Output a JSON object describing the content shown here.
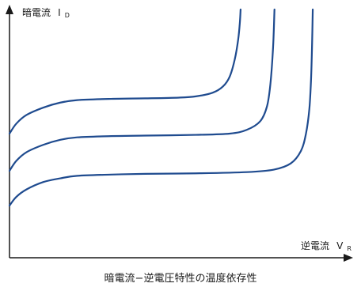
{
  "chart_data": {
    "type": "line",
    "title": "暗電流−逆電圧特性の温度依存性",
    "ylabel": {
      "main": "暗電流",
      "symbol": "I",
      "subscript": "D"
    },
    "xlabel": {
      "main": "逆電流",
      "symbol": "V",
      "subscript": "R"
    },
    "xlim": [
      0,
      100
    ],
    "ylim": [
      0,
      100
    ],
    "grid": false,
    "colors": {
      "axis": "#1a1a1a",
      "curve": "#1f4b8f"
    },
    "series": [
      {
        "points": [
          [
            0,
            50
          ],
          [
            2,
            54
          ],
          [
            5,
            57.5
          ],
          [
            10,
            60.5
          ],
          [
            15,
            62.5
          ],
          [
            20,
            63.5
          ],
          [
            30,
            64
          ],
          [
            40,
            64.2
          ],
          [
            50,
            64.5
          ],
          [
            55,
            65
          ],
          [
            60,
            66.5
          ],
          [
            63,
            69
          ],
          [
            65,
            73
          ],
          [
            66.5,
            80
          ],
          [
            67.5,
            88
          ],
          [
            68,
            95
          ],
          [
            68.2,
            100
          ]
        ]
      },
      {
        "points": [
          [
            0,
            35
          ],
          [
            2,
            39
          ],
          [
            5,
            42.5
          ],
          [
            10,
            45.5
          ],
          [
            15,
            47.5
          ],
          [
            20,
            48.5
          ],
          [
            30,
            49
          ],
          [
            40,
            49.2
          ],
          [
            55,
            49.5
          ],
          [
            65,
            50
          ],
          [
            70,
            51.5
          ],
          [
            74,
            55
          ],
          [
            76,
            61
          ],
          [
            77,
            70
          ],
          [
            77.8,
            85
          ],
          [
            78.2,
            100
          ]
        ]
      },
      {
        "points": [
          [
            0,
            21
          ],
          [
            2,
            24.5
          ],
          [
            5,
            27.5
          ],
          [
            10,
            30.5
          ],
          [
            15,
            32
          ],
          [
            20,
            33
          ],
          [
            30,
            33.5
          ],
          [
            40,
            33.8
          ],
          [
            55,
            34
          ],
          [
            70,
            34.5
          ],
          [
            78,
            35.5
          ],
          [
            83,
            38
          ],
          [
            86,
            43
          ],
          [
            87.5,
            50
          ],
          [
            88.5,
            60
          ],
          [
            89,
            72
          ],
          [
            89.3,
            86
          ],
          [
            89.5,
            100
          ]
        ]
      }
    ]
  }
}
